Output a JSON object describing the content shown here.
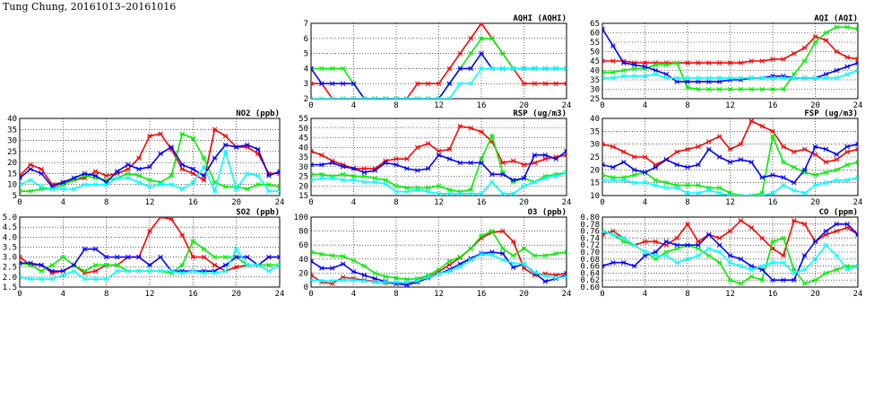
{
  "page": {
    "title": "Tung Chung, 20161013–20161016"
  },
  "colors": {
    "red": "#ff0000",
    "green": "#00ee00",
    "blue": "#0000ff",
    "cyan": "#00ffff"
  },
  "chart_data": [
    {
      "id": "aqhi",
      "type": "line",
      "title": "AQHI (AQHI)",
      "xlim": [
        0,
        24
      ],
      "xticks": [
        0,
        4,
        8,
        12,
        16,
        20,
        24
      ],
      "ylim": [
        2,
        7
      ],
      "yticks": [
        2,
        3,
        4,
        5,
        6,
        7
      ],
      "grid": true,
      "series": [
        {
          "color": "red",
          "values": [
            3,
            3,
            2,
            2,
            2,
            2,
            2,
            2,
            2,
            2,
            3,
            3,
            3,
            4,
            5,
            6,
            7,
            6,
            5,
            4,
            3,
            3,
            3,
            3,
            3
          ]
        },
        {
          "color": "green",
          "values": [
            4,
            4,
            4,
            4,
            3,
            2,
            2,
            2,
            2,
            2,
            2,
            2,
            2,
            3,
            4,
            5,
            6,
            6,
            5,
            4,
            4,
            4,
            4,
            4,
            4
          ]
        },
        {
          "color": "blue",
          "values": [
            4,
            3,
            3,
            3,
            3,
            2,
            2,
            2,
            2,
            2,
            2,
            2,
            2,
            3,
            4,
            4,
            5,
            4,
            4,
            4,
            4,
            4,
            4,
            4,
            4
          ]
        },
        {
          "color": "cyan",
          "values": [
            2,
            2,
            2,
            2,
            2,
            2,
            2,
            2,
            2,
            2,
            2,
            2,
            2,
            2,
            3,
            3,
            4,
            4,
            4,
            4,
            4,
            4,
            4,
            4,
            4
          ]
        }
      ]
    },
    {
      "id": "aqi",
      "type": "line",
      "title": "AQI (AQI)",
      "xlim": [
        0,
        24
      ],
      "xticks": [
        0,
        4,
        8,
        12,
        16,
        20,
        24
      ],
      "ylim": [
        25,
        65
      ],
      "yticks": [
        25,
        30,
        35,
        40,
        45,
        50,
        55,
        60,
        65
      ],
      "grid": true,
      "series": [
        {
          "color": "red",
          "values": [
            45,
            45,
            45,
            44,
            44,
            44,
            44,
            44,
            44,
            44,
            44,
            44,
            44,
            44,
            45,
            45,
            46,
            46,
            49,
            52,
            58,
            56,
            50,
            47,
            46
          ]
        },
        {
          "color": "green",
          "values": [
            39,
            39,
            40,
            41,
            41,
            43,
            43,
            44,
            31,
            30,
            30,
            30,
            30,
            30,
            30,
            30,
            30,
            30,
            38,
            45,
            55,
            60,
            63,
            63,
            62
          ]
        },
        {
          "color": "blue",
          "values": [
            62,
            53,
            44,
            43,
            42,
            40,
            38,
            34,
            34,
            34,
            34,
            34,
            35,
            35,
            36,
            36,
            37,
            37,
            36,
            36,
            36,
            38,
            40,
            42,
            44
          ]
        },
        {
          "color": "cyan",
          "values": [
            36,
            36,
            37,
            37,
            37,
            38,
            36,
            36,
            36,
            36,
            36,
            36,
            36,
            36,
            36,
            36,
            36,
            36,
            36,
            36,
            36,
            36,
            36,
            38,
            40
          ]
        }
      ]
    },
    {
      "id": "no2",
      "type": "line",
      "title": "NO2 (ppb)",
      "xlim": [
        0,
        24
      ],
      "xticks": [
        0,
        4,
        8,
        12,
        16,
        20,
        24
      ],
      "ylim": [
        5,
        40
      ],
      "yticks": [
        5,
        10,
        15,
        20,
        25,
        30,
        35,
        40
      ],
      "grid": true,
      "series": [
        {
          "color": "red",
          "values": [
            14,
            19,
            17,
            10,
            11,
            12,
            13,
            16,
            14,
            15,
            17,
            22,
            32,
            33,
            26,
            17,
            15,
            12,
            35,
            32,
            27,
            27,
            24,
            15,
            15
          ]
        },
        {
          "color": "green",
          "values": [
            7,
            7,
            8,
            8,
            10,
            12,
            14,
            13,
            12,
            13,
            15,
            14,
            12,
            11,
            14,
            33,
            31,
            22,
            11,
            9,
            9,
            8,
            10,
            10,
            9
          ]
        },
        {
          "color": "blue",
          "values": [
            13,
            17,
            15,
            9,
            11,
            13,
            15,
            14,
            11,
            16,
            19,
            17,
            18,
            24,
            27,
            19,
            17,
            14,
            22,
            28,
            27,
            28,
            26,
            14,
            16
          ]
        },
        {
          "color": "cyan",
          "values": [
            10,
            12,
            9,
            8,
            8,
            8,
            10,
            10,
            10,
            13,
            13,
            11,
            9,
            10,
            10,
            8,
            11,
            18,
            7,
            25,
            8,
            15,
            14,
            7,
            7
          ]
        }
      ]
    },
    {
      "id": "rsp",
      "type": "line",
      "title": "RSP (ug/m3)",
      "xlim": [
        0,
        24
      ],
      "xticks": [
        0,
        4,
        8,
        12,
        16,
        20,
        24
      ],
      "ylim": [
        15,
        55
      ],
      "yticks": [
        15,
        20,
        25,
        30,
        35,
        40,
        45,
        50,
        55
      ],
      "grid": true,
      "series": [
        {
          "color": "red",
          "values": [
            38,
            36,
            33,
            31,
            29,
            29,
            29,
            33,
            34,
            34,
            40,
            42,
            38,
            39,
            51,
            50,
            48,
            43,
            32,
            33,
            31,
            32,
            34,
            35,
            36
          ]
        },
        {
          "color": "green",
          "values": [
            26,
            26,
            25,
            26,
            25,
            25,
            24,
            23,
            20,
            19,
            19,
            19,
            20,
            18,
            17,
            18,
            34,
            46,
            27,
            22,
            24,
            22,
            25,
            26,
            27
          ]
        },
        {
          "color": "blue",
          "values": [
            31,
            31,
            32,
            30,
            29,
            27,
            28,
            32,
            31,
            29,
            28,
            29,
            36,
            34,
            32,
            32,
            32,
            26,
            26,
            23,
            24,
            36,
            36,
            34,
            38
          ]
        },
        {
          "color": "cyan",
          "values": [
            23,
            24,
            24,
            23,
            23,
            22,
            22,
            21,
            17,
            17,
            18,
            17,
            16,
            16,
            16,
            16,
            16,
            22,
            16,
            16,
            20,
            22,
            24,
            25,
            27
          ]
        }
      ]
    },
    {
      "id": "fsp",
      "type": "line",
      "title": "FSP (ug/m3)",
      "xlim": [
        0,
        24
      ],
      "xticks": [
        0,
        4,
        8,
        12,
        16,
        20,
        24
      ],
      "ylim": [
        10,
        40
      ],
      "yticks": [
        10,
        15,
        20,
        25,
        30,
        35,
        40
      ],
      "grid": true,
      "series": [
        {
          "color": "red",
          "values": [
            30,
            29,
            27,
            25,
            25,
            22,
            24,
            27,
            28,
            29,
            31,
            33,
            28,
            30,
            39,
            37,
            35,
            29,
            27,
            28,
            26,
            23,
            24,
            27,
            28
          ]
        },
        {
          "color": "green",
          "values": [
            18,
            17,
            17,
            18,
            19,
            16,
            15,
            14,
            14,
            14,
            13,
            13,
            11,
            10,
            10,
            11,
            33,
            23,
            21,
            19,
            18,
            19,
            20,
            22,
            23
          ]
        },
        {
          "color": "blue",
          "values": [
            22,
            21,
            23,
            20,
            19,
            21,
            24,
            22,
            21,
            22,
            28,
            25,
            23,
            24,
            23,
            17,
            18,
            17,
            15,
            20,
            29,
            28,
            26,
            29,
            30
          ]
        },
        {
          "color": "cyan",
          "values": [
            16,
            16,
            16,
            15,
            15,
            14,
            13,
            13,
            11,
            11,
            12,
            11,
            10,
            10,
            10,
            10,
            11,
            14,
            12,
            11,
            14,
            15,
            16,
            16,
            17
          ]
        }
      ]
    },
    {
      "id": "so2",
      "type": "line",
      "title": "SO2 (ppb)",
      "xlim": [
        0,
        24
      ],
      "xticks": [
        0,
        4,
        8,
        12,
        16,
        20,
        24
      ],
      "ylim": [
        1.5,
        5.0
      ],
      "yticks": [
        1.5,
        2.0,
        2.5,
        3.0,
        3.5,
        4.0,
        4.5,
        5.0
      ],
      "grid": true,
      "series": [
        {
          "color": "red",
          "values": [
            3.0,
            2.6,
            2.6,
            2.2,
            2.3,
            2.6,
            2.2,
            2.3,
            2.6,
            2.6,
            3.0,
            3.0,
            4.3,
            5.0,
            4.9,
            4.1,
            3.0,
            3.0,
            2.6,
            2.3,
            2.5,
            2.6,
            2.6,
            3.0,
            3.0
          ]
        },
        {
          "color": "green",
          "values": [
            2.7,
            2.6,
            2.3,
            2.6,
            3.0,
            2.6,
            2.3,
            2.6,
            2.6,
            2.6,
            2.3,
            2.3,
            2.3,
            2.3,
            2.2,
            2.6,
            3.8,
            3.4,
            3.0,
            3.0,
            3.0,
            2.6,
            2.6,
            2.6,
            2.6
          ]
        },
        {
          "color": "blue",
          "values": [
            2.7,
            2.7,
            2.6,
            2.3,
            2.3,
            2.6,
            3.4,
            3.4,
            3.0,
            3.0,
            3.0,
            3.0,
            2.6,
            3.0,
            2.3,
            2.3,
            2.3,
            2.3,
            2.3,
            2.6,
            3.0,
            3.0,
            2.6,
            3.0,
            3.0
          ]
        },
        {
          "color": "cyan",
          "values": [
            2.0,
            1.9,
            1.9,
            1.9,
            2.1,
            2.3,
            1.9,
            1.9,
            1.9,
            2.3,
            2.3,
            2.3,
            2.3,
            2.3,
            2.3,
            2.2,
            2.3,
            2.2,
            2.2,
            2.3,
            3.4,
            2.6,
            2.6,
            2.3,
            2.6
          ]
        }
      ]
    },
    {
      "id": "o3",
      "type": "line",
      "title": "O3 (ppb)",
      "xlim": [
        0,
        24
      ],
      "xticks": [
        0,
        4,
        8,
        12,
        16,
        20,
        24
      ],
      "ylim": [
        0,
        100
      ],
      "yticks": [
        0,
        20,
        40,
        60,
        80,
        100
      ],
      "grid": true,
      "series": [
        {
          "color": "red",
          "values": [
            17,
            7,
            5,
            14,
            12,
            10,
            8,
            6,
            5,
            4,
            10,
            14,
            22,
            32,
            42,
            55,
            70,
            78,
            80,
            65,
            27,
            17,
            19,
            17,
            20
          ]
        },
        {
          "color": "green",
          "values": [
            50,
            47,
            45,
            44,
            38,
            30,
            20,
            15,
            13,
            11,
            12,
            17,
            25,
            37,
            43,
            55,
            73,
            80,
            55,
            45,
            55,
            45,
            45,
            48,
            50
          ]
        },
        {
          "color": "blue",
          "values": [
            37,
            27,
            27,
            33,
            22,
            17,
            12,
            8,
            5,
            3,
            7,
            13,
            19,
            25,
            33,
            41,
            48,
            50,
            48,
            28,
            33,
            20,
            8,
            12,
            18
          ]
        },
        {
          "color": "cyan",
          "values": [
            10,
            9,
            9,
            10,
            10,
            9,
            7,
            7,
            7,
            7,
            9,
            14,
            19,
            23,
            29,
            39,
            47,
            46,
            39,
            34,
            33,
            21,
            16,
            13,
            15
          ]
        }
      ]
    },
    {
      "id": "co",
      "type": "line",
      "title": "CO (ppm)",
      "xlim": [
        0,
        24
      ],
      "xticks": [
        0,
        4,
        8,
        12,
        16,
        20,
        24
      ],
      "ylim": [
        0.6,
        0.8
      ],
      "yticks": [
        0.6,
        0.62,
        0.64,
        0.66,
        0.68,
        0.7,
        0.72,
        0.74,
        0.76,
        0.78,
        0.8
      ],
      "grid": true,
      "series": [
        {
          "color": "red",
          "values": [
            0.75,
            0.76,
            0.74,
            0.72,
            0.73,
            0.73,
            0.72,
            0.74,
            0.78,
            0.73,
            0.75,
            0.74,
            0.76,
            0.79,
            0.77,
            0.74,
            0.71,
            0.69,
            0.79,
            0.78,
            0.73,
            0.75,
            0.76,
            0.77,
            0.75
          ]
        },
        {
          "color": "green",
          "values": [
            0.76,
            0.75,
            0.73,
            0.72,
            0.7,
            0.68,
            0.7,
            0.71,
            0.72,
            0.71,
            0.69,
            0.67,
            0.62,
            0.61,
            0.63,
            0.62,
            0.73,
            0.74,
            0.65,
            0.61,
            0.62,
            0.64,
            0.65,
            0.66,
            0.66
          ]
        },
        {
          "color": "blue",
          "values": [
            0.66,
            0.67,
            0.67,
            0.66,
            0.69,
            0.7,
            0.73,
            0.72,
            0.72,
            0.72,
            0.75,
            0.72,
            0.69,
            0.68,
            0.66,
            0.65,
            0.62,
            0.62,
            0.62,
            0.69,
            0.73,
            0.76,
            0.78,
            0.78,
            0.75
          ]
        },
        {
          "color": "cyan",
          "values": [
            0.76,
            0.75,
            0.74,
            0.72,
            0.7,
            0.69,
            0.69,
            0.67,
            0.68,
            0.69,
            0.71,
            0.7,
            0.67,
            0.66,
            0.65,
            0.66,
            0.67,
            0.67,
            0.64,
            0.65,
            0.68,
            0.72,
            0.69,
            0.65,
            0.66
          ]
        }
      ]
    }
  ]
}
